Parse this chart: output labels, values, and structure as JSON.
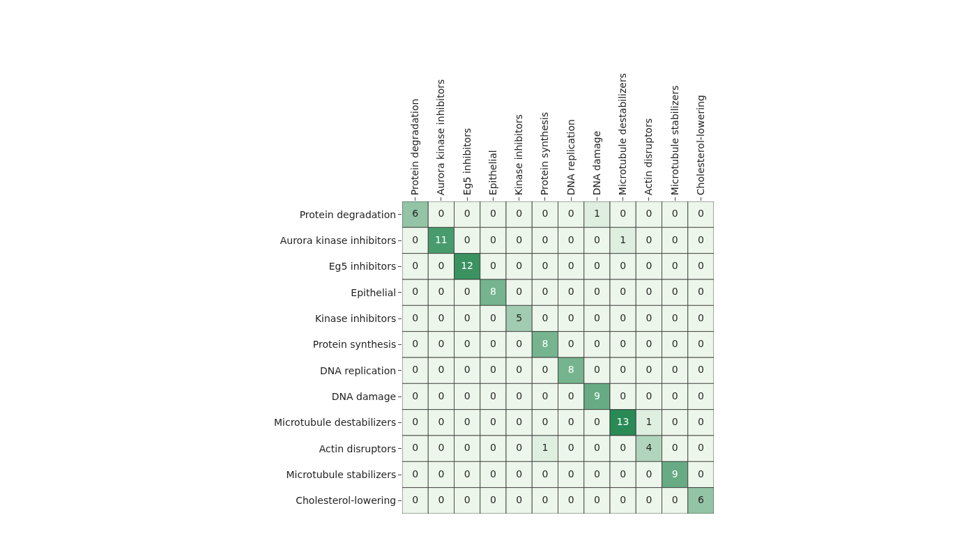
{
  "chart_data": {
    "type": "heatmap",
    "categories": [
      "Protein degradation",
      "Aurora kinase inhibitors",
      "Eg5 inhibitors",
      "Epithelial",
      "Kinase inhibitors",
      "Protein synthesis",
      "DNA replication",
      "DNA damage",
      "Microtubule destabilizers",
      "Actin disruptors",
      "Microtubule stabilizers",
      "Cholesterol-lowering"
    ],
    "y_categories": [
      "Protein degradation",
      "Aurora kinase inhibitors",
      "Eg5 inhibitors",
      "Epithelial",
      "Kinase inhibitors",
      "Protein synthesis",
      "DNA replication",
      "DNA damage",
      "Microtubule destabilizers",
      "Actin disruptors",
      "Microtubule stabilizers",
      "Cholesterol-lowering"
    ],
    "cells": [
      [
        6,
        0,
        0,
        0,
        0,
        0,
        0,
        1,
        0,
        0,
        0,
        0
      ],
      [
        0,
        11,
        0,
        0,
        0,
        0,
        0,
        0,
        1,
        0,
        0,
        0
      ],
      [
        0,
        0,
        12,
        0,
        0,
        0,
        0,
        0,
        0,
        0,
        0,
        0
      ],
      [
        0,
        0,
        0,
        8,
        0,
        0,
        0,
        0,
        0,
        0,
        0,
        0
      ],
      [
        0,
        0,
        0,
        0,
        5,
        0,
        0,
        0,
        0,
        0,
        0,
        0
      ],
      [
        0,
        0,
        0,
        0,
        0,
        8,
        0,
        0,
        0,
        0,
        0,
        0
      ],
      [
        0,
        0,
        0,
        0,
        0,
        0,
        8,
        0,
        0,
        0,
        0,
        0
      ],
      [
        0,
        0,
        0,
        0,
        0,
        0,
        0,
        9,
        0,
        0,
        0,
        0
      ],
      [
        0,
        0,
        0,
        0,
        0,
        0,
        0,
        0,
        13,
        1,
        0,
        0
      ],
      [
        0,
        0,
        0,
        0,
        0,
        1,
        0,
        0,
        0,
        4,
        0,
        0
      ],
      [
        0,
        0,
        0,
        0,
        0,
        0,
        0,
        0,
        0,
        0,
        9,
        0
      ],
      [
        0,
        0,
        0,
        0,
        0,
        0,
        0,
        0,
        0,
        0,
        0,
        6
      ]
    ],
    "data_labels": true
  }
}
